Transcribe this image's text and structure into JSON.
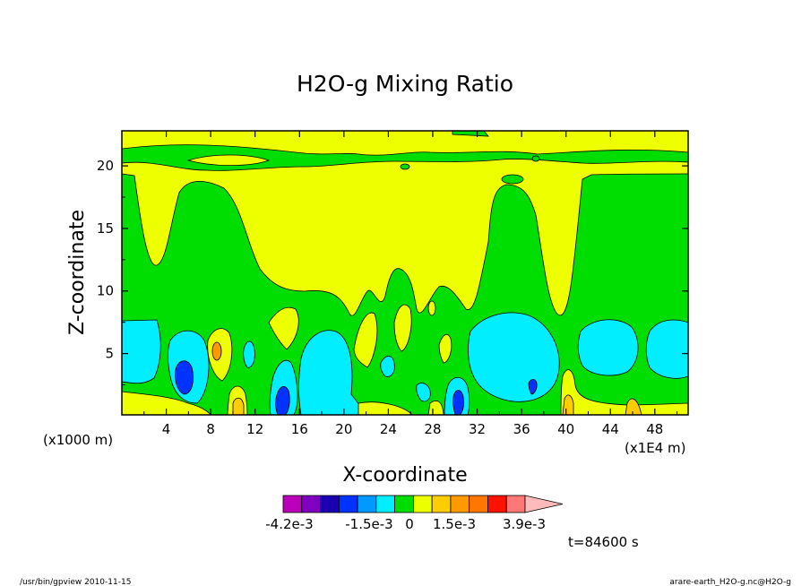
{
  "title": "H2O-g Mixing Ratio",
  "footer_left": "/usr/bin/gpview  2010-11-15",
  "footer_right": "arare-earth_H2O-g.nc@H2O-g",
  "time_label": "t=84600 s",
  "chart_data": {
    "type": "heatmap",
    "title": "H2O-g Mixing Ratio",
    "xlabel": "X-coordinate",
    "ylabel": "Z-coordinate",
    "x_unit_left": "(x1000 m)",
    "x_unit_right": "(x1E4 m)",
    "x_ticks": [
      4,
      8,
      12,
      16,
      20,
      24,
      28,
      32,
      36,
      40,
      44,
      48
    ],
    "y_ticks": [
      5,
      10,
      15,
      20
    ],
    "xlim": [
      0,
      51
    ],
    "ylim": [
      0.1,
      22.8
    ],
    "grid": false,
    "colorbar": {
      "colors": [
        "#bb00bb",
        "#7f00bf",
        "#1a00b0",
        "#0033ff",
        "#0099ff",
        "#00eeff",
        "#00dd00",
        "#eeff00",
        "#ffcc00",
        "#ff9900",
        "#ff7700",
        "#ff1100",
        "#ff7777",
        "#ffbbbb"
      ],
      "labels": [
        "-4.2e-3",
        "-1.5e-3",
        "0",
        "1.5e-3",
        "3.9e-3"
      ]
    },
    "regions": [
      {
        "level": "green",
        "desc": "base layer over whole domain below z~8"
      },
      {
        "level": "cyan",
        "x": [
          0,
          4
        ],
        "z": [
          1,
          7.5
        ]
      },
      {
        "level": "cyan",
        "x": [
          4,
          8
        ],
        "z": [
          0.5,
          7
        ]
      },
      {
        "level": "blue",
        "x": [
          4.5,
          6.5
        ],
        "z": [
          1.5,
          4.5
        ]
      },
      {
        "level": "yellow",
        "x": [
          7.5,
          9.5
        ],
        "z": [
          3.5,
          7.5
        ]
      },
      {
        "level": "cyan",
        "x": [
          13,
          17
        ],
        "z": [
          0.2,
          4.5
        ]
      },
      {
        "level": "blue",
        "x": [
          14,
          15.5
        ],
        "z": [
          0.2,
          2.5
        ]
      },
      {
        "level": "cyan",
        "x": [
          17,
          22
        ],
        "z": [
          0.5,
          7
        ]
      },
      {
        "level": "cyan",
        "x": [
          29,
          31.5
        ],
        "z": [
          0.3,
          3.5
        ]
      },
      {
        "level": "blue",
        "x": [
          29.5,
          30.5
        ],
        "z": [
          0.3,
          2.3
        ]
      },
      {
        "level": "cyan",
        "x": [
          31,
          39
        ],
        "z": [
          1.5,
          8.2
        ]
      },
      {
        "level": "cyan",
        "x": [
          41,
          45
        ],
        "z": [
          1.8,
          7.8
        ]
      },
      {
        "level": "cyan",
        "x": [
          46,
          51
        ],
        "z": [
          1.8,
          7.8
        ]
      }
    ]
  }
}
